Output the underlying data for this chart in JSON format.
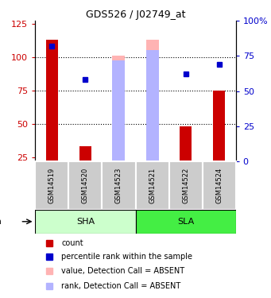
{
  "title": "GDS526 / J02749_at",
  "samples": [
    "GSM14519",
    "GSM14520",
    "GSM14523",
    "GSM14521",
    "GSM14522",
    "GSM14524"
  ],
  "count_values": [
    113,
    33,
    null,
    null,
    48,
    75
  ],
  "rank_values": [
    82,
    58,
    null,
    null,
    62,
    69
  ],
  "absent_value_bars": [
    null,
    null,
    101,
    113,
    null,
    null
  ],
  "absent_rank_bars": [
    null,
    null,
    72,
    79,
    null,
    null
  ],
  "ylim_left": [
    22,
    127
  ],
  "ylim_right": [
    0,
    100
  ],
  "left_ticks": [
    25,
    50,
    75,
    100,
    125
  ],
  "right_ticks": [
    0,
    25,
    50,
    75,
    100
  ],
  "left_tick_labels": [
    "25",
    "50",
    "75",
    "100",
    "125"
  ],
  "right_tick_labels": [
    "0",
    "25",
    "50",
    "75",
    "100%"
  ],
  "color_count": "#cc0000",
  "color_rank": "#0000cc",
  "color_absent_value": "#ffb3b3",
  "color_absent_rank": "#b3b3ff",
  "bar_width": 0.35,
  "absent_bar_width": 0.38,
  "ybase": 22,
  "sha_color": "#ccffcc",
  "sla_color": "#44ee44",
  "sample_box_color": "#cccccc"
}
